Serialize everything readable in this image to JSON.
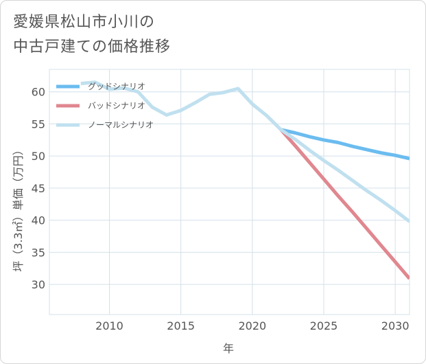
{
  "page": {
    "title_line1": "愛媛県松山市小川の",
    "title_line2": "中古戸建ての価格推移"
  },
  "colors": {
    "good": "#6bbcef",
    "bad": "#e0878f",
    "normal": "#c0e0ef",
    "grid": "#d3e0ea",
    "plot_bg": "#ffffff",
    "text": "#555555"
  },
  "chart_data": {
    "type": "line",
    "title": "愛媛県松山市小川の中古戸建ての価格推移",
    "xlabel": "年",
    "ylabel": "坪（3.3㎡）単価（万円）",
    "xlim": [
      2005.8,
      2031
    ],
    "ylim": [
      25.3,
      63.5
    ],
    "xticks": [
      2010,
      2015,
      2020,
      2025,
      2030
    ],
    "yticks": [
      30,
      35,
      40,
      45,
      50,
      55,
      60
    ],
    "grid": true,
    "legend_position": "top-left",
    "series": [
      {
        "name": "グッドシナリオ",
        "color_key": "good",
        "x": [
          2022,
          2023,
          2024,
          2025,
          2026,
          2027,
          2028,
          2029,
          2030,
          2031
        ],
        "y": [
          54.1,
          53.6,
          53.0,
          52.5,
          52.1,
          51.5,
          51.0,
          50.5,
          50.1,
          49.6
        ]
      },
      {
        "name": "バッドシナリオ",
        "color_key": "bad",
        "x": [
          2022,
          2023,
          2024,
          2025,
          2026,
          2027,
          2028,
          2029,
          2030,
          2031
        ],
        "y": [
          54.1,
          51.6,
          49.0,
          46.4,
          43.8,
          41.3,
          38.7,
          36.1,
          33.5,
          30.9
        ]
      },
      {
        "name": "ノーマルシナリオ",
        "color_key": "normal",
        "x": [
          2008,
          2009,
          2010,
          2011,
          2012,
          2013,
          2014,
          2015,
          2016,
          2017,
          2018,
          2019,
          2020,
          2021,
          2022,
          2023,
          2024,
          2025,
          2026,
          2027,
          2028,
          2029,
          2030,
          2031
        ],
        "y": [
          61.3,
          61.5,
          60.4,
          60.6,
          60.0,
          57.6,
          56.4,
          57.1,
          58.3,
          59.6,
          59.9,
          60.5,
          58.1,
          56.3,
          54.1,
          52.6,
          50.9,
          49.3,
          47.8,
          46.2,
          44.6,
          43.1,
          41.5,
          39.8
        ]
      }
    ]
  }
}
